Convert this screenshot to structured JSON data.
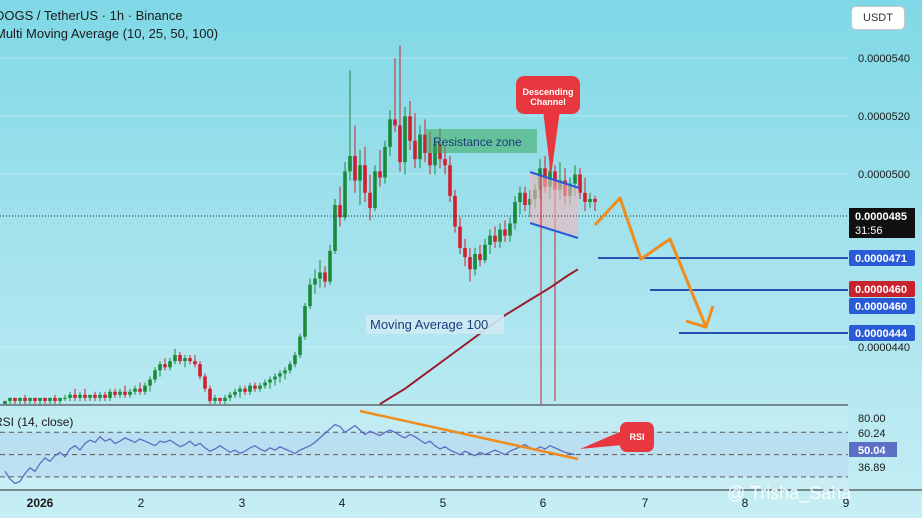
{
  "header": {
    "title": "DOGS / TetherUS · 1h · Binance",
    "indicator": "Multi Moving Average (10, 25, 50, 100)",
    "currency_button": "USDT"
  },
  "watermark": "@ Trisha_Saha",
  "colors": {
    "bull": "#1a8a3a",
    "bear": "#d01f2f",
    "ma100": "#9c1b2b",
    "trend": "#f08c1e",
    "level": "#2850b4",
    "channel": "#2a5bd7",
    "rsi_line": "#5b6fc4",
    "callout": "#e8373e"
  },
  "chart_data": {
    "type": "candlestick",
    "price_axis": {
      "ticks": [
        "0.0000540",
        "0.0000520",
        "0.0000500",
        "0.0000440"
      ],
      "range": [
        4.19e-05,
        5.5e-05
      ]
    },
    "time_axis": {
      "ticks": [
        "2026",
        "2",
        "3",
        "4",
        "5",
        "6",
        "7",
        "8",
        "9"
      ]
    },
    "current_price": {
      "value": "0.0000485",
      "countdown": "31:56"
    },
    "price_badges": [
      {
        "label": "0.0000471",
        "color": "blue"
      },
      {
        "label": "0.0000460",
        "color": "red"
      },
      {
        "label": "0.0000460",
        "color": "blue"
      },
      {
        "label": "0.0000444",
        "color": "blue"
      }
    ],
    "candles": [
      {
        "o": 4.19e-05,
        "h": 4.2e-05,
        "l": 4.19e-05,
        "c": 4.2e-05
      },
      {
        "o": 4.2e-05,
        "h": 4.21e-05,
        "l": 4.19e-05,
        "c": 4.21e-05
      },
      {
        "o": 4.21e-05,
        "h": 4.21e-05,
        "l": 4.19e-05,
        "c": 4.2e-05
      },
      {
        "o": 4.2e-05,
        "h": 4.21e-05,
        "l": 4.19e-05,
        "c": 4.21e-05
      },
      {
        "o": 4.21e-05,
        "h": 4.22e-05,
        "l": 4.19e-05,
        "c": 4.2e-05
      },
      {
        "o": 4.2e-05,
        "h": 4.21e-05,
        "l": 4.19e-05,
        "c": 4.21e-05
      },
      {
        "o": 4.21e-05,
        "h": 4.21e-05,
        "l": 4.19e-05,
        "c": 4.2e-05
      },
      {
        "o": 4.2e-05,
        "h": 4.21e-05,
        "l": 4.19e-05,
        "c": 4.21e-05
      },
      {
        "o": 4.21e-05,
        "h": 4.21e-05,
        "l": 4.19e-05,
        "c": 4.2e-05
      },
      {
        "o": 4.2e-05,
        "h": 4.21e-05,
        "l": 4.19e-05,
        "c": 4.21e-05
      },
      {
        "o": 4.21e-05,
        "h": 4.22e-05,
        "l": 4.19e-05,
        "c": 4.2e-05
      },
      {
        "o": 4.2e-05,
        "h": 4.21e-05,
        "l": 4.19e-05,
        "c": 4.21e-05
      },
      {
        "o": 4.21e-05,
        "h": 4.22e-05,
        "l": 4.2e-05,
        "c": 4.21e-05
      },
      {
        "o": 4.21e-05,
        "h": 4.23e-05,
        "l": 4.2e-05,
        "c": 4.22e-05
      },
      {
        "o": 4.22e-05,
        "h": 4.24e-05,
        "l": 4.2e-05,
        "c": 4.21e-05
      },
      {
        "o": 4.21e-05,
        "h": 4.23e-05,
        "l": 4.2e-05,
        "c": 4.22e-05
      },
      {
        "o": 4.22e-05,
        "h": 4.24e-05,
        "l": 4.2e-05,
        "c": 4.21e-05
      },
      {
        "o": 4.21e-05,
        "h": 4.22e-05,
        "l": 4.2e-05,
        "c": 4.22e-05
      },
      {
        "o": 4.22e-05,
        "h": 4.23e-05,
        "l": 4.2e-05,
        "c": 4.21e-05
      },
      {
        "o": 4.21e-05,
        "h": 4.23e-05,
        "l": 4.2e-05,
        "c": 4.22e-05
      },
      {
        "o": 4.22e-05,
        "h": 4.23e-05,
        "l": 4.2e-05,
        "c": 4.21e-05
      },
      {
        "o": 4.21e-05,
        "h": 4.24e-05,
        "l": 4.2e-05,
        "c": 4.23e-05
      },
      {
        "o": 4.23e-05,
        "h": 4.24e-05,
        "l": 4.21e-05,
        "c": 4.22e-05
      },
      {
        "o": 4.22e-05,
        "h": 4.24e-05,
        "l": 4.21e-05,
        "c": 4.23e-05
      },
      {
        "o": 4.23e-05,
        "h": 4.25e-05,
        "l": 4.21e-05,
        "c": 4.22e-05
      },
      {
        "o": 4.22e-05,
        "h": 4.24e-05,
        "l": 4.21e-05,
        "c": 4.23e-05
      },
      {
        "o": 4.23e-05,
        "h": 4.25e-05,
        "l": 4.22e-05,
        "c": 4.24e-05
      },
      {
        "o": 4.24e-05,
        "h": 4.26e-05,
        "l": 4.22e-05,
        "c": 4.23e-05
      },
      {
        "o": 4.23e-05,
        "h": 4.26e-05,
        "l": 4.22e-05,
        "c": 4.25e-05
      },
      {
        "o": 4.25e-05,
        "h": 4.28e-05,
        "l": 4.23e-05,
        "c": 4.27e-05
      },
      {
        "o": 4.27e-05,
        "h": 4.31e-05,
        "l": 4.26e-05,
        "c": 4.3e-05
      },
      {
        "o": 4.3e-05,
        "h": 4.33e-05,
        "l": 4.28e-05,
        "c": 4.32e-05
      },
      {
        "o": 4.32e-05,
        "h": 4.34e-05,
        "l": 4.3e-05,
        "c": 4.31e-05
      },
      {
        "o": 4.31e-05,
        "h": 4.34e-05,
        "l": 4.3e-05,
        "c": 4.33e-05
      },
      {
        "o": 4.33e-05,
        "h": 4.37e-05,
        "l": 4.32e-05,
        "c": 4.35e-05
      },
      {
        "o": 4.35e-05,
        "h": 4.36e-05,
        "l": 4.32e-05,
        "c": 4.33e-05
      },
      {
        "o": 4.33e-05,
        "h": 4.35e-05,
        "l": 4.31e-05,
        "c": 4.34e-05
      },
      {
        "o": 4.34e-05,
        "h": 4.35e-05,
        "l": 4.32e-05,
        "c": 4.33e-05
      },
      {
        "o": 4.33e-05,
        "h": 4.35e-05,
        "l": 4.31e-05,
        "c": 4.32e-05
      },
      {
        "o": 4.32e-05,
        "h": 4.33e-05,
        "l": 4.27e-05,
        "c": 4.28e-05
      },
      {
        "o": 4.28e-05,
        "h": 4.29e-05,
        "l": 4.23e-05,
        "c": 4.24e-05
      },
      {
        "o": 4.24e-05,
        "h": 4.25e-05,
        "l": 4.19e-05,
        "c": 4.2e-05
      },
      {
        "o": 4.2e-05,
        "h": 4.22e-05,
        "l": 4.19e-05,
        "c": 4.21e-05
      },
      {
        "o": 4.21e-05,
        "h": 4.21e-05,
        "l": 4.19e-05,
        "c": 4.2e-05
      },
      {
        "o": 4.2e-05,
        "h": 4.22e-05,
        "l": 4.19e-05,
        "c": 4.21e-05
      },
      {
        "o": 4.21e-05,
        "h": 4.23e-05,
        "l": 4.2e-05,
        "c": 4.22e-05
      },
      {
        "o": 4.22e-05,
        "h": 4.24e-05,
        "l": 4.21e-05,
        "c": 4.23e-05
      },
      {
        "o": 4.23e-05,
        "h": 4.25e-05,
        "l": 4.21e-05,
        "c": 4.24e-05
      },
      {
        "o": 4.24e-05,
        "h": 4.25e-05,
        "l": 4.22e-05,
        "c": 4.23e-05
      },
      {
        "o": 4.23e-05,
        "h": 4.26e-05,
        "l": 4.22e-05,
        "c": 4.25e-05
      },
      {
        "o": 4.25e-05,
        "h": 4.26e-05,
        "l": 4.23e-05,
        "c": 4.24e-05
      },
      {
        "o": 4.24e-05,
        "h": 4.26e-05,
        "l": 4.23e-05,
        "c": 4.25e-05
      },
      {
        "o": 4.25e-05,
        "h": 4.27e-05,
        "l": 4.24e-05,
        "c": 4.26e-05
      },
      {
        "o": 4.26e-05,
        "h": 4.28e-05,
        "l": 4.24e-05,
        "c": 4.27e-05
      },
      {
        "o": 4.27e-05,
        "h": 4.29e-05,
        "l": 4.25e-05,
        "c": 4.28e-05
      },
      {
        "o": 4.28e-05,
        "h": 4.3e-05,
        "l": 4.26e-05,
        "c": 4.29e-05
      },
      {
        "o": 4.29e-05,
        "h": 4.31e-05,
        "l": 4.27e-05,
        "c": 4.3e-05
      },
      {
        "o": 4.3e-05,
        "h": 4.33e-05,
        "l": 4.29e-05,
        "c": 4.32e-05
      },
      {
        "o": 4.32e-05,
        "h": 4.36e-05,
        "l": 4.31e-05,
        "c": 4.35e-05
      },
      {
        "o": 4.35e-05,
        "h": 4.42e-05,
        "l": 4.34e-05,
        "c": 4.41e-05
      },
      {
        "o": 4.41e-05,
        "h": 4.52e-05,
        "l": 4.4e-05,
        "c": 4.51e-05
      },
      {
        "o": 4.51e-05,
        "h": 4.6e-05,
        "l": 4.5e-05,
        "c": 4.58e-05
      },
      {
        "o": 4.58e-05,
        "h": 4.63e-05,
        "l": 4.55e-05,
        "c": 4.6e-05
      },
      {
        "o": 4.6e-05,
        "h": 4.66e-05,
        "l": 4.57e-05,
        "c": 4.62e-05
      },
      {
        "o": 4.62e-05,
        "h": 4.64e-05,
        "l": 4.57e-05,
        "c": 4.59e-05
      },
      {
        "o": 4.59e-05,
        "h": 4.71e-05,
        "l": 4.58e-05,
        "c": 4.69e-05
      },
      {
        "o": 4.69e-05,
        "h": 4.86e-05,
        "l": 4.68e-05,
        "c": 4.84e-05
      },
      {
        "o": 4.84e-05,
        "h": 4.9e-05,
        "l": 4.77e-05,
        "c": 4.8e-05
      },
      {
        "o": 4.8e-05,
        "h": 4.98e-05,
        "l": 4.79e-05,
        "c": 4.95e-05
      },
      {
        "o": 4.95e-05,
        "h": 5.28e-05,
        "l": 4.92e-05,
        "c": 5e-05
      },
      {
        "o": 5e-05,
        "h": 5.1e-05,
        "l": 4.88e-05,
        "c": 4.92e-05
      },
      {
        "o": 4.92e-05,
        "h": 5.02e-05,
        "l": 4.84e-05,
        "c": 4.97e-05
      },
      {
        "o": 4.97e-05,
        "h": 5.03e-05,
        "l": 4.85e-05,
        "c": 4.88e-05
      },
      {
        "o": 4.88e-05,
        "h": 4.94e-05,
        "l": 4.79e-05,
        "c": 4.83e-05
      },
      {
        "o": 4.83e-05,
        "h": 4.97e-05,
        "l": 4.82e-05,
        "c": 4.95e-05
      },
      {
        "o": 4.95e-05,
        "h": 5.02e-05,
        "l": 4.9e-05,
        "c": 4.93e-05
      },
      {
        "o": 4.93e-05,
        "h": 5.05e-05,
        "l": 4.91e-05,
        "c": 5.03e-05
      },
      {
        "o": 5.03e-05,
        "h": 5.15e-05,
        "l": 5e-05,
        "c": 5.12e-05
      },
      {
        "o": 5.12e-05,
        "h": 5.32e-05,
        "l": 5.08e-05,
        "c": 5.1e-05
      },
      {
        "o": 5.1e-05,
        "h": 5.36e-05,
        "l": 4.95e-05,
        "c": 4.98e-05
      },
      {
        "o": 4.98e-05,
        "h": 5.16e-05,
        "l": 4.94e-05,
        "c": 5.13e-05
      },
      {
        "o": 5.13e-05,
        "h": 5.18e-05,
        "l": 5.02e-05,
        "c": 5.05e-05
      },
      {
        "o": 5.05e-05,
        "h": 5.14e-05,
        "l": 4.96e-05,
        "c": 4.99e-05
      },
      {
        "o": 4.99e-05,
        "h": 5.1e-05,
        "l": 4.96e-05,
        "c": 5.07e-05
      },
      {
        "o": 5.07e-05,
        "h": 5.12e-05,
        "l": 4.98e-05,
        "c": 5.01e-05
      },
      {
        "o": 5.01e-05,
        "h": 5.08e-05,
        "l": 4.94e-05,
        "c": 4.97e-05
      },
      {
        "o": 4.97e-05,
        "h": 5.06e-05,
        "l": 4.94e-05,
        "c": 5.04e-05
      },
      {
        "o": 5.04e-05,
        "h": 5.09e-05,
        "l": 4.96e-05,
        "c": 4.99e-05
      },
      {
        "o": 4.99e-05,
        "h": 5.03e-05,
        "l": 4.94e-05,
        "c": 4.97e-05
      },
      {
        "o": 4.97e-05,
        "h": 5e-05,
        "l": 4.85e-05,
        "c": 4.87e-05
      },
      {
        "o": 4.87e-05,
        "h": 4.89e-05,
        "l": 4.75e-05,
        "c": 4.77e-05
      },
      {
        "o": 4.77e-05,
        "h": 4.8e-05,
        "l": 4.68e-05,
        "c": 4.7e-05
      },
      {
        "o": 4.7e-05,
        "h": 4.73e-05,
        "l": 4.64e-05,
        "c": 4.67e-05
      },
      {
        "o": 4.67e-05,
        "h": 4.7e-05,
        "l": 4.59e-05,
        "c": 4.63e-05
      },
      {
        "o": 4.63e-05,
        "h": 4.7e-05,
        "l": 4.61e-05,
        "c": 4.68e-05
      },
      {
        "o": 4.68e-05,
        "h": 4.71e-05,
        "l": 4.64e-05,
        "c": 4.66e-05
      },
      {
        "o": 4.66e-05,
        "h": 4.73e-05,
        "l": 4.65e-05,
        "c": 4.71e-05
      },
      {
        "o": 4.71e-05,
        "h": 4.76e-05,
        "l": 4.68e-05,
        "c": 4.74e-05
      },
      {
        "o": 4.74e-05,
        "h": 4.77e-05,
        "l": 4.7e-05,
        "c": 4.72e-05
      },
      {
        "o": 4.72e-05,
        "h": 4.78e-05,
        "l": 4.7e-05,
        "c": 4.76e-05
      },
      {
        "o": 4.76e-05,
        "h": 4.79e-05,
        "l": 4.72e-05,
        "c": 4.74e-05
      },
      {
        "o": 4.74e-05,
        "h": 4.8e-05,
        "l": 4.72e-05,
        "c": 4.78e-05
      },
      {
        "o": 4.78e-05,
        "h": 4.87e-05,
        "l": 4.76e-05,
        "c": 4.85e-05
      },
      {
        "o": 4.85e-05,
        "h": 4.9e-05,
        "l": 4.81e-05,
        "c": 4.88e-05
      },
      {
        "o": 4.88e-05,
        "h": 4.9e-05,
        "l": 4.82e-05,
        "c": 4.84e-05
      },
      {
        "o": 4.84e-05,
        "h": 4.89e-05,
        "l": 4.8e-05,
        "c": 4.86e-05
      },
      {
        "o": 4.86e-05,
        "h": 4.91e-05,
        "l": 4.83e-05,
        "c": 4.89e-05
      },
      {
        "o": 4.89e-05,
        "h": 4.99e-05,
        "l": 4.86e-05,
        "c": 4.96e-05
      },
      {
        "o": 4.96e-05,
        "h": 5e-05,
        "l": 4.88e-05,
        "c": 4.9e-05
      },
      {
        "o": 4.9e-05,
        "h": 4.98e-05,
        "l": 4.86e-05,
        "c": 4.95e-05
      },
      {
        "o": 4.95e-05,
        "h": 4.97e-05,
        "l": 4.2e-05,
        "c": 4.89e-05
      },
      {
        "o": 4.89e-05,
        "h": 4.98e-05,
        "l": 4.86e-05,
        "c": 4.92e-05
      },
      {
        "o": 4.92e-05,
        "h": 4.96e-05,
        "l": 4.84e-05,
        "c": 4.87e-05
      },
      {
        "o": 4.87e-05,
        "h": 4.93e-05,
        "l": 4.84e-05,
        "c": 4.91e-05
      },
      {
        "o": 4.91e-05,
        "h": 4.97e-05,
        "l": 4.87e-05,
        "c": 4.94e-05
      },
      {
        "o": 4.94e-05,
        "h": 4.96e-05,
        "l": 4.86e-05,
        "c": 4.88e-05
      },
      {
        "o": 4.88e-05,
        "h": 4.93e-05,
        "l": 4.82e-05,
        "c": 4.85e-05
      },
      {
        "o": 4.85e-05,
        "h": 4.88e-05,
        "l": 4.83e-05,
        "c": 4.86e-05
      },
      {
        "o": 4.86e-05,
        "h": 4.87e-05,
        "l": 4.82e-05,
        "c": 4.85e-05
      }
    ],
    "ma100": [
      4.19e-05,
      4.24e-05,
      4.3e-05,
      4.36e-05,
      4.42e-05,
      4.48e-05,
      4.53e-05,
      4.57e-05,
      4.61e-05,
      4.63e-05
    ],
    "annotations": {
      "resistance_zone": "Resistance zone",
      "ma_label": "Moving Average 100",
      "channel_callout": "Descending Channel",
      "rsi_callout": "RSI"
    },
    "projection_path": [
      4.82e-05,
      4.91e-05,
      4.62e-05,
      4.67e-05,
      4.42e-05
    ],
    "levels": [
      4.71e-05,
      4.6e-05,
      4.44e-05
    ],
    "rsi": {
      "label": "RSI (14, close)",
      "ticks": [
        "80.00",
        "60.24",
        "50.04",
        "36.89"
      ],
      "range": [
        20,
        90
      ],
      "bands": {
        "upper": 70,
        "middle": 50,
        "lower": 30
      },
      "values": [
        35,
        28,
        24,
        26,
        33,
        38,
        35,
        42,
        47,
        44,
        49,
        52,
        48,
        55,
        58,
        54,
        60,
        63,
        61,
        66,
        62,
        64,
        60,
        62,
        65,
        63,
        61,
        64,
        62,
        60,
        58,
        62,
        61,
        63,
        60,
        57,
        59,
        62,
        58,
        60,
        56,
        53,
        55,
        58,
        55,
        52,
        54,
        51,
        53,
        56,
        58,
        55,
        53,
        56,
        54,
        57,
        55,
        53,
        51,
        54,
        56,
        58,
        61,
        65,
        69,
        73,
        77,
        75,
        70,
        73,
        76,
        72,
        68,
        71,
        69,
        67,
        70,
        72,
        70,
        67,
        65,
        68,
        66,
        63,
        60,
        62,
        58,
        55,
        57,
        54,
        52,
        50,
        53,
        51,
        49,
        52,
        50,
        52,
        54,
        52,
        50,
        53,
        55,
        57,
        59,
        56,
        54,
        57,
        55,
        58,
        56,
        54,
        52,
        51,
        50
      ]
    }
  }
}
